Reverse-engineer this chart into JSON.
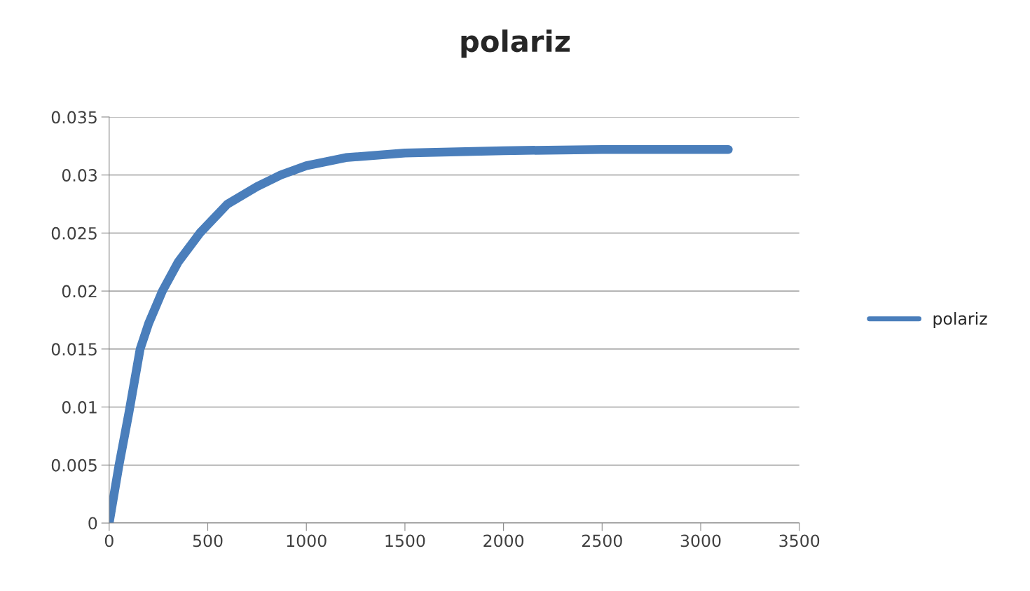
{
  "chart_data": {
    "type": "line",
    "title": "polariz",
    "series": [
      {
        "name": "polariz",
        "color": "#4a7ebb",
        "x": [
          0,
          50,
          100,
          157,
          200,
          270,
          350,
          460,
          600,
          750,
          870,
          1000,
          1200,
          1500,
          2000,
          2500,
          3140
        ],
        "values": [
          0,
          0.005,
          0.0095,
          0.015,
          0.0172,
          0.02,
          0.0225,
          0.025,
          0.0275,
          0.029,
          0.03,
          0.0308,
          0.0315,
          0.0319,
          0.0321,
          0.0322,
          0.0322
        ]
      }
    ],
    "xlim": [
      0,
      3500
    ],
    "xticks": [
      0,
      500,
      1000,
      1500,
      2000,
      2500,
      3000,
      3500
    ],
    "ylim": [
      0,
      0.035
    ],
    "yticks": [
      0,
      0.005,
      0.01,
      0.015,
      0.02,
      0.025,
      0.03,
      0.035
    ],
    "grid": "y",
    "legend": "right",
    "marker": "none",
    "line_style": "solid"
  }
}
